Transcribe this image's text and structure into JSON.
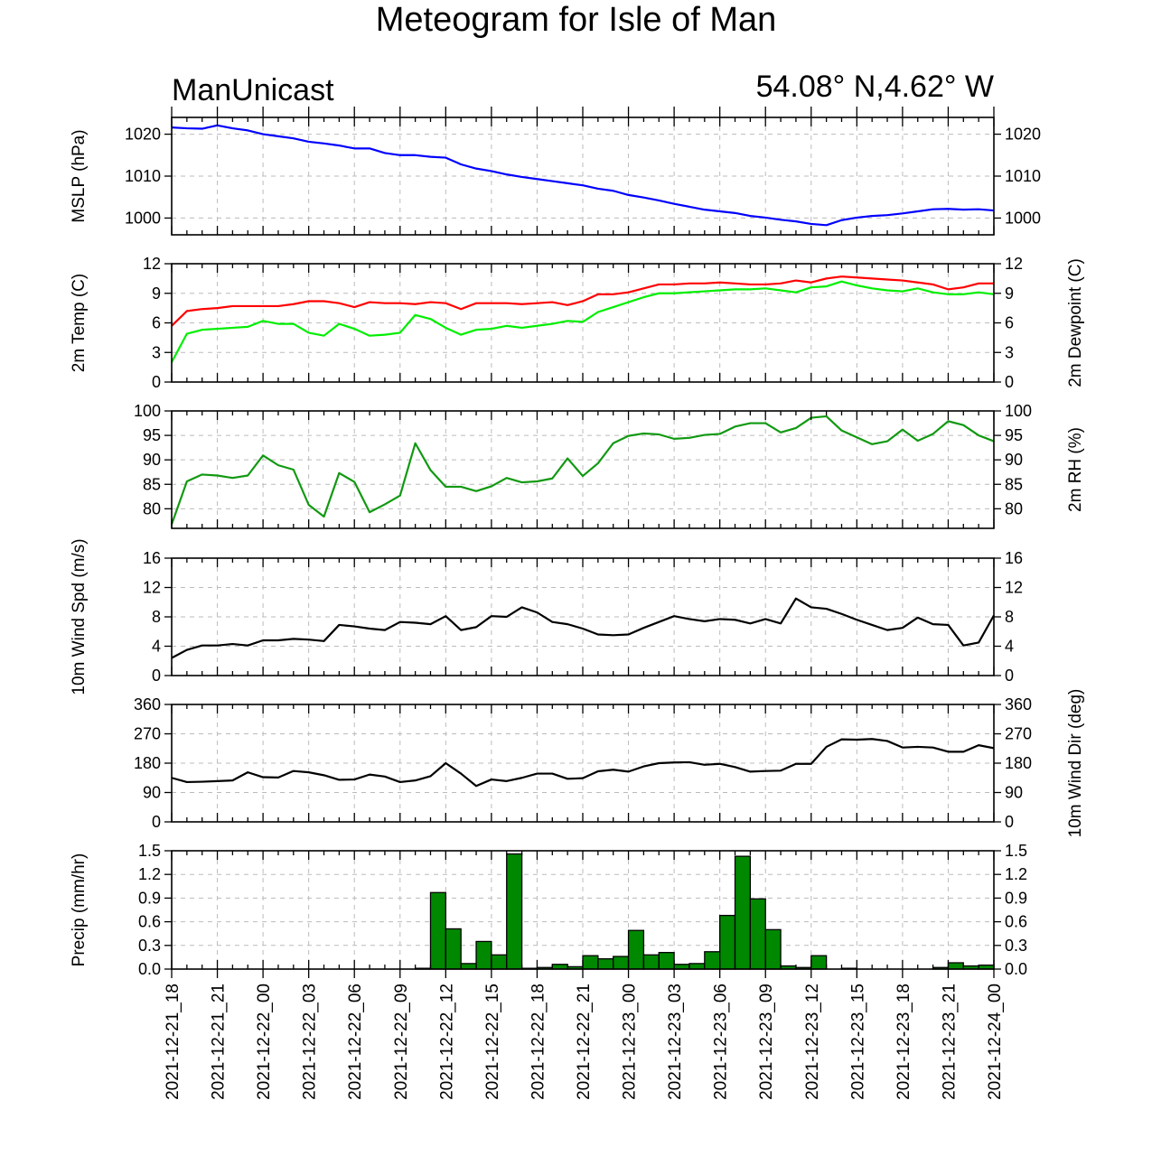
{
  "title": "Meteogram for Isle of Man",
  "station": "ManUnicast",
  "coordinates": "54.08° N,4.62° W",
  "colors": {
    "mslp": "#0000ff",
    "temp": "#ff0000",
    "dewpoint": "#00ee00",
    "rh": "#119911",
    "wind": "#000000",
    "precip_fill": "#008800",
    "grid": "#bbbbbb"
  },
  "chart_data": [
    {
      "type": "line",
      "panel": "mslp",
      "ylabel_left": "MSLP (hPa)",
      "ylabel_right": "",
      "ylim": [
        996,
        1024
      ],
      "yticks": [
        1000,
        1010,
        1020
      ],
      "ytick_labels": [
        "1000",
        "1010",
        "1020"
      ],
      "series": [
        {
          "values": [
            1021.6,
            1021.4,
            1021.3,
            1022.1,
            1021.4,
            1020.9,
            1020.0,
            1019.5,
            1019.0,
            1018.2,
            1017.8,
            1017.3,
            1016.6,
            1016.6,
            1015.5,
            1015.0,
            1015.0,
            1014.6,
            1014.4,
            1012.8,
            1011.8,
            1011.2,
            1010.4,
            1009.8,
            1009.3,
            1008.8,
            1008.3,
            1007.8,
            1007.0,
            1006.5,
            1005.5,
            1004.9,
            1004.2,
            1003.4,
            1002.7,
            1002.0,
            1001.6,
            1001.2,
            1000.5,
            1000.1,
            999.6,
            999.2,
            998.6,
            998.3,
            999.5,
            1000.1,
            1000.5,
            1000.7,
            1001.1,
            1001.6,
            1002.1,
            1002.2,
            1002.0,
            1002.1,
            1001.8
          ]
        }
      ]
    },
    {
      "type": "line",
      "panel": "temperature",
      "ylabel_left": "2m Temp (C)",
      "ylabel_right": "2m Dewpoint (C)",
      "ylim": [
        0,
        12
      ],
      "yticks": [
        0,
        3,
        6,
        9,
        12
      ],
      "ytick_labels": [
        "0",
        "3",
        "6",
        "9",
        "12"
      ],
      "series": [
        {
          "color_key": "temp",
          "values": [
            5.7,
            7.2,
            7.4,
            7.5,
            7.7,
            7.7,
            7.7,
            7.7,
            7.9,
            8.2,
            8.2,
            8.0,
            7.6,
            8.1,
            8.0,
            8.0,
            7.9,
            8.1,
            8.0,
            7.4,
            8.0,
            8.0,
            8.0,
            7.9,
            8.0,
            8.1,
            7.8,
            8.2,
            8.9,
            8.9,
            9.1,
            9.5,
            9.9,
            9.9,
            10.0,
            10.0,
            10.1,
            10.0,
            9.9,
            9.9,
            10.0,
            10.3,
            10.1,
            10.5,
            10.7,
            10.6,
            10.5,
            10.4,
            10.3,
            10.1,
            9.9,
            9.4,
            9.6,
            10.0,
            10.0
          ]
        },
        {
          "color_key": "dewpoint",
          "values": [
            2.0,
            4.9,
            5.3,
            5.4,
            5.5,
            5.6,
            6.2,
            5.9,
            5.9,
            5.0,
            4.7,
            5.9,
            5.4,
            4.7,
            4.8,
            5.0,
            6.8,
            6.4,
            5.5,
            4.8,
            5.3,
            5.4,
            5.7,
            5.5,
            5.7,
            5.9,
            6.2,
            6.1,
            7.1,
            7.6,
            8.1,
            8.6,
            9.0,
            9.0,
            9.1,
            9.2,
            9.3,
            9.4,
            9.4,
            9.5,
            9.3,
            9.1,
            9.6,
            9.7,
            10.2,
            9.8,
            9.5,
            9.3,
            9.2,
            9.5,
            9.1,
            8.9,
            8.9,
            9.1,
            8.9
          ]
        }
      ]
    },
    {
      "type": "line",
      "panel": "rh",
      "ylabel_left": "",
      "ylabel_right": "2m RH (%)",
      "ylim": [
        76,
        100
      ],
      "yticks": [
        80,
        85,
        90,
        95,
        100
      ],
      "ytick_labels": [
        "80",
        "85",
        "90",
        "95",
        "100"
      ],
      "series": [
        {
          "color_key": "rh",
          "values": [
            76.8,
            85.6,
            87.0,
            86.8,
            86.3,
            86.8,
            90.9,
            88.9,
            88.0,
            80.8,
            78.4,
            87.3,
            85.5,
            79.3,
            80.9,
            82.7,
            93.4,
            87.9,
            84.5,
            84.5,
            83.6,
            84.6,
            86.3,
            85.4,
            85.6,
            86.2,
            90.3,
            86.7,
            89.3,
            93.4,
            94.9,
            95.4,
            95.2,
            94.3,
            94.5,
            95.1,
            95.3,
            96.8,
            97.5,
            97.5,
            95.6,
            96.5,
            98.6,
            98.9,
            96.0,
            94.6,
            93.2,
            93.8,
            96.2,
            93.9,
            95.3,
            97.9,
            97.1,
            95.0,
            93.8
          ]
        }
      ]
    },
    {
      "type": "line",
      "panel": "wind_speed",
      "ylabel_left": "10m Wind Spd (m/s)",
      "ylabel_right": "",
      "ylim": [
        0,
        16
      ],
      "yticks": [
        0,
        4,
        8,
        12,
        16
      ],
      "ytick_labels": [
        "0",
        "4",
        "8",
        "12",
        "16"
      ],
      "series": [
        {
          "color_key": "wind",
          "values": [
            2.4,
            3.5,
            4.1,
            4.1,
            4.3,
            4.1,
            4.8,
            4.8,
            5.0,
            4.9,
            4.7,
            6.9,
            6.7,
            6.4,
            6.2,
            7.3,
            7.2,
            7.0,
            8.1,
            6.2,
            6.6,
            8.1,
            8.0,
            9.3,
            8.6,
            7.3,
            7.0,
            6.4,
            5.6,
            5.5,
            5.6,
            6.5,
            7.3,
            8.1,
            7.7,
            7.4,
            7.7,
            7.6,
            7.1,
            7.7,
            7.1,
            10.5,
            9.3,
            9.1,
            8.4,
            7.6,
            6.9,
            6.2,
            6.5,
            7.9,
            7.0,
            6.9,
            4.1,
            4.5,
            8.2
          ]
        }
      ]
    },
    {
      "type": "line",
      "panel": "wind_direction",
      "ylabel_left": "",
      "ylabel_right": "10m Wind Dir (deg)",
      "ylim": [
        0,
        360
      ],
      "yticks": [
        0,
        90,
        180,
        270,
        360
      ],
      "ytick_labels": [
        "0",
        "90",
        "180",
        "270",
        "360"
      ],
      "series": [
        {
          "color_key": "wind",
          "values": [
            135,
            122,
            123,
            125,
            127,
            152,
            137,
            136,
            156,
            152,
            143,
            129,
            130,
            145,
            139,
            122,
            127,
            140,
            180,
            148,
            110,
            130,
            125,
            135,
            148,
            148,
            132,
            134,
            155,
            160,
            154,
            170,
            180,
            182,
            183,
            175,
            178,
            168,
            154,
            156,
            157,
            178,
            178,
            230,
            253,
            252,
            254,
            248,
            228,
            230,
            228,
            215,
            215,
            235,
            226
          ]
        }
      ]
    },
    {
      "type": "bar",
      "panel": "precipitation",
      "ylabel_left": "Precip (mm/hr)",
      "ylabel_right": "",
      "ylim": [
        0,
        1.5
      ],
      "yticks": [
        0,
        0.3,
        0.6,
        0.9,
        1.2,
        1.5
      ],
      "ytick_labels": [
        "0.0",
        "0.3",
        "0.6",
        "0.9",
        "1.2",
        "1.5"
      ],
      "values": [
        0,
        0,
        0,
        0,
        0,
        0,
        0,
        0,
        0,
        0,
        0,
        0,
        0,
        0,
        0,
        0,
        0.01,
        0.97,
        0.51,
        0.07,
        0.35,
        0.18,
        1.46,
        0.01,
        0.02,
        0.06,
        0.03,
        0.17,
        0.13,
        0.16,
        0.49,
        0.18,
        0.21,
        0.06,
        0.07,
        0.22,
        0.68,
        1.43,
        0.89,
        0.5,
        0.04,
        0.02,
        0.17,
        0,
        0.01,
        0,
        0,
        0,
        0,
        0,
        0.02,
        0.08,
        0.04,
        0.05
      ]
    }
  ],
  "x_axis": {
    "start_hour": 0,
    "end_hour": 54,
    "time_labels": [
      "2021-12-21_18",
      "2021-12-21_21",
      "2021-12-22_00",
      "2021-12-22_03",
      "2021-12-22_06",
      "2021-12-22_09",
      "2021-12-22_12",
      "2021-12-22_15",
      "2021-12-22_18",
      "2021-12-22_21",
      "2021-12-23_00",
      "2021-12-23_03",
      "2021-12-23_06",
      "2021-12-23_09",
      "2021-12-23_12",
      "2021-12-23_15",
      "2021-12-23_18",
      "2021-12-23_21",
      "2021-12-24_00"
    ]
  }
}
